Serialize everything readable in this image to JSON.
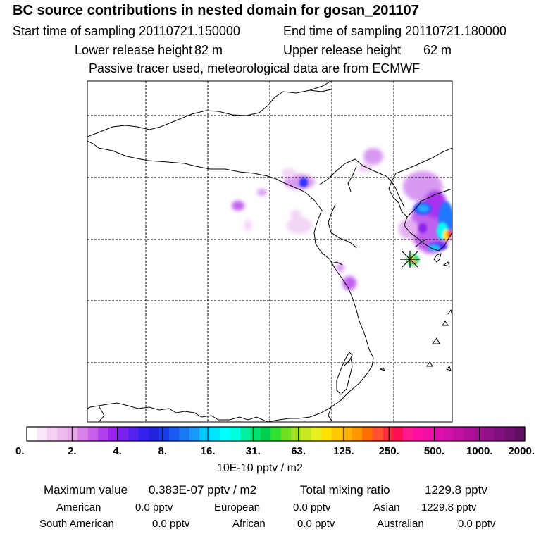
{
  "title": "BC  source contributions in nested domain for gosan_201107",
  "header": {
    "start_label": "Start time of sampling 20110721.150000",
    "end_label": "End time of sampling 20110721.180000",
    "lower_label": "Lower release height",
    "lower_value": "82 m",
    "upper_label": "Upper release height",
    "upper_value": "62 m",
    "note": "Passive tracer used, meteorological data are from ECMWF"
  },
  "map": {
    "receptor_marker": "asterisk-marker-icon",
    "plume_colors": [
      "#f2d6f6",
      "#d899f0",
      "#aa33ee",
      "#3333ff",
      "#2299ff",
      "#00ffee",
      "#ffe000",
      "#ff3333"
    ]
  },
  "colorbar": {
    "colors": [
      "#ffffff",
      "#fbe6fb",
      "#f5d0f5",
      "#eebbee",
      "#e8a8e8",
      "#d882ea",
      "#c860ec",
      "#b040ee",
      "#9a22ee",
      "#7a22ee",
      "#5522ee",
      "#3322ee",
      "#2222dd",
      "#1a3ae8",
      "#1a5af0",
      "#1a7af5",
      "#1a98f8",
      "#00c8ff",
      "#00e4ff",
      "#00ffff",
      "#00ffe0",
      "#00f0a0",
      "#00e070",
      "#00d050",
      "#30e030",
      "#70e020",
      "#a0e020",
      "#c8e820",
      "#e8f020",
      "#ffe000",
      "#ffc800",
      "#ffb000",
      "#ff9800",
      "#ff7000",
      "#ff5030",
      "#ff3040",
      "#ff1050",
      "#ff1a90",
      "#ff10a0",
      "#f010a8",
      "#e010b0",
      "#d010a8",
      "#c010a0",
      "#b01098",
      "#a01090",
      "#901088",
      "#801080",
      "#701070",
      "#601060"
    ],
    "labels": [
      "0.",
      "2.",
      "4.",
      "8.",
      "16.",
      "31.",
      "63.",
      "125.",
      "250.",
      "500.",
      "1000.",
      "2000."
    ],
    "unit": "10E-10 pptv / m2"
  },
  "footer": {
    "max_label": "Maximum value",
    "max_value": "0.383E-07 pptv / m2",
    "total_label": "Total mixing ratio",
    "total_value": "1229.8 pptv",
    "regions": [
      {
        "name": "American",
        "value": "0.0 pptv"
      },
      {
        "name": "European",
        "value": "0.0 pptv"
      },
      {
        "name": "Asian",
        "value": "1229.8 pptv"
      },
      {
        "name": "South American",
        "value": "0.0 pptv"
      },
      {
        "name": "African",
        "value": "0.0 pptv"
      },
      {
        "name": "Australian",
        "value": "0.0 pptv"
      }
    ]
  }
}
